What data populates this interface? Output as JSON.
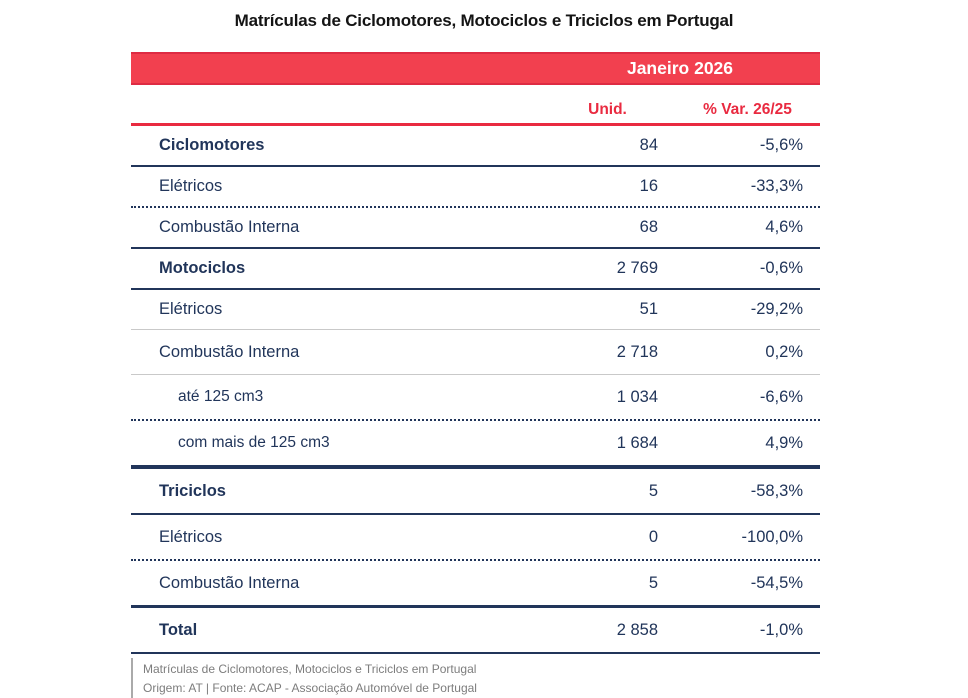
{
  "title": "Matrículas de Ciclomotores, Motociclos e Triciclos em Portugal",
  "table": {
    "period_header": "Janeiro 2026",
    "columns": {
      "units": "Unid.",
      "variation": "% Var. 26/25"
    },
    "rows": [
      {
        "label": "Ciclomotores",
        "unid": "84",
        "var": "-5,6%"
      },
      {
        "label": "Elétricos",
        "unid": "16",
        "var": "-33,3%"
      },
      {
        "label": "Combustão Interna",
        "unid": "68",
        "var": "4,6%"
      },
      {
        "label": "Motociclos",
        "unid": "2 769",
        "var": "-0,6%"
      },
      {
        "label": "Elétricos",
        "unid": "51",
        "var": "-29,2%"
      },
      {
        "label": "Combustão Interna",
        "unid": "2 718",
        "var": "0,2%"
      },
      {
        "label": "até 125 cm3",
        "unid": "1 034",
        "var": "-6,6%"
      },
      {
        "label": "com mais de 125 cm3",
        "unid": "1 684",
        "var": "4,9%"
      },
      {
        "label": "Triciclos",
        "unid": "5",
        "var": "-58,3%"
      },
      {
        "label": "Elétricos",
        "unid": "0",
        "var": "-100,0%"
      },
      {
        "label": "Combustão Interna",
        "unid": "5",
        "var": "-54,5%"
      },
      {
        "label": "Total",
        "unid": "2 858",
        "var": "-1,0%"
      }
    ]
  },
  "footer": {
    "line1": "Matrículas de Ciclomotores, Motociclos e Triciclos em Portugal",
    "line2": "Origem: AT | Fonte: ACAP - Associação Automóvel de Portugal"
  },
  "colors": {
    "banner_red": "#f2404f",
    "banner_red_border": "#de2b43",
    "header_red": "#e92a40",
    "navy_text": "#21355a",
    "footer_gray": "#7d7d7d",
    "light_rule_gray": "#c9c9c9"
  },
  "chart_data": {
    "type": "table",
    "title": "Matrículas de Ciclomotores, Motociclos e Triciclos em Portugal",
    "period": "Janeiro 2026",
    "columns": [
      "Unid.",
      "% Var. 26/25"
    ],
    "rows": [
      {
        "category": "Ciclomotores",
        "level": "section",
        "units": 84,
        "var_pct": -5.6
      },
      {
        "category": "Ciclomotores Elétricos",
        "level": "sub",
        "units": 16,
        "var_pct": -33.3
      },
      {
        "category": "Ciclomotores Combustão Interna",
        "level": "sub",
        "units": 68,
        "var_pct": 4.6
      },
      {
        "category": "Motociclos",
        "level": "section",
        "units": 2769,
        "var_pct": -0.6
      },
      {
        "category": "Motociclos Elétricos",
        "level": "sub",
        "units": 51,
        "var_pct": -29.2
      },
      {
        "category": "Motociclos Combustão Interna",
        "level": "sub",
        "units": 2718,
        "var_pct": 0.2
      },
      {
        "category": "até 125 cm3",
        "level": "subsub",
        "units": 1034,
        "var_pct": -6.6
      },
      {
        "category": "com mais de 125 cm3",
        "level": "subsub",
        "units": 1684,
        "var_pct": 4.9
      },
      {
        "category": "Triciclos",
        "level": "section",
        "units": 5,
        "var_pct": -58.3
      },
      {
        "category": "Triciclos Elétricos",
        "level": "sub",
        "units": 0,
        "var_pct": -100.0
      },
      {
        "category": "Triciclos Combustão Interna",
        "level": "sub",
        "units": 5,
        "var_pct": -54.5
      },
      {
        "category": "Total",
        "level": "total",
        "units": 2858,
        "var_pct": -1.0
      }
    ]
  }
}
